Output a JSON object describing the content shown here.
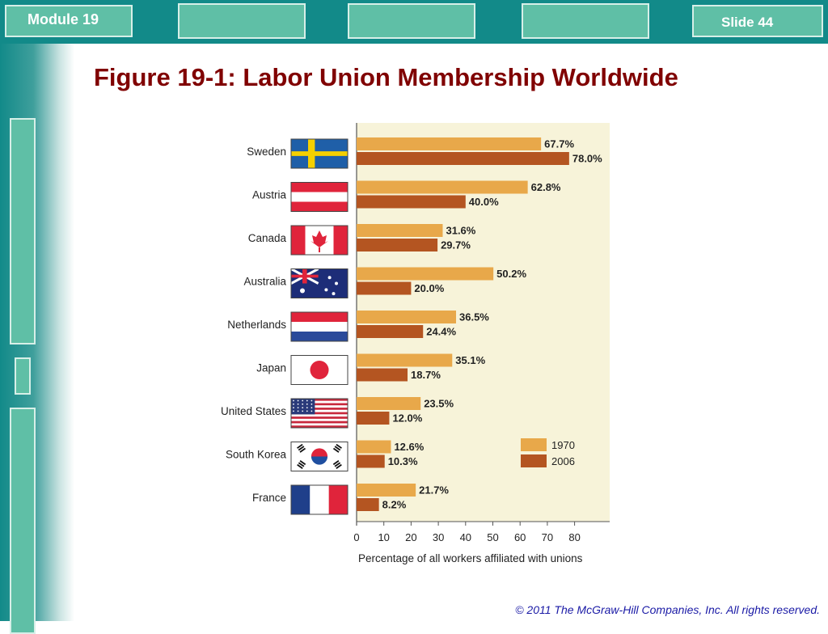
{
  "header": {
    "module_label": "Module 19",
    "slide_label": "Slide 44"
  },
  "title": "Figure 19-1: Labor Union Membership Worldwide",
  "footer": {
    "copyright": "© 2011 The McGraw-Hill Companies, Inc. All rights reserved."
  },
  "colors": {
    "band": "#128a89",
    "tab": "#5fbfa6",
    "title": "#800000",
    "plot_bg": "#f7f3d9",
    "series_1970": "#e8a84a",
    "series_2006": "#b45521"
  },
  "chart_data": {
    "type": "bar",
    "orientation": "horizontal",
    "title": "",
    "xlabel": "Percentage of all workers affiliated with unions",
    "ylabel": "",
    "xlim": [
      0,
      80
    ],
    "xticks": [
      0,
      10,
      20,
      30,
      40,
      50,
      60,
      70,
      80
    ],
    "grid": false,
    "legend_position": "bottom-right",
    "categories": [
      "Sweden",
      "Austria",
      "Canada",
      "Australia",
      "Netherlands",
      "Japan",
      "United States",
      "South Korea",
      "France"
    ],
    "flag_icons": [
      "sweden-flag-icon",
      "austria-flag-icon",
      "canada-flag-icon",
      "australia-flag-icon",
      "netherlands-flag-icon",
      "japan-flag-icon",
      "united-states-flag-icon",
      "south-korea-flag-icon",
      "france-flag-icon"
    ],
    "series": [
      {
        "name": "1970",
        "values": [
          67.7,
          62.8,
          31.6,
          50.2,
          36.5,
          35.1,
          23.5,
          12.6,
          21.7
        ],
        "labels": [
          "67.7%",
          "62.8%",
          "31.6%",
          "50.2%",
          "36.5%",
          "35.1%",
          "23.5%",
          "12.6%",
          "21.7%"
        ]
      },
      {
        "name": "2006",
        "values": [
          78.0,
          40.0,
          29.7,
          20.0,
          24.4,
          18.7,
          12.0,
          10.3,
          8.2
        ],
        "labels": [
          "78.0%",
          "40.0%",
          "29.7%",
          "20.0%",
          "24.4%",
          "18.7%",
          "12.0%",
          "10.3%",
          "8.2%"
        ]
      }
    ]
  }
}
